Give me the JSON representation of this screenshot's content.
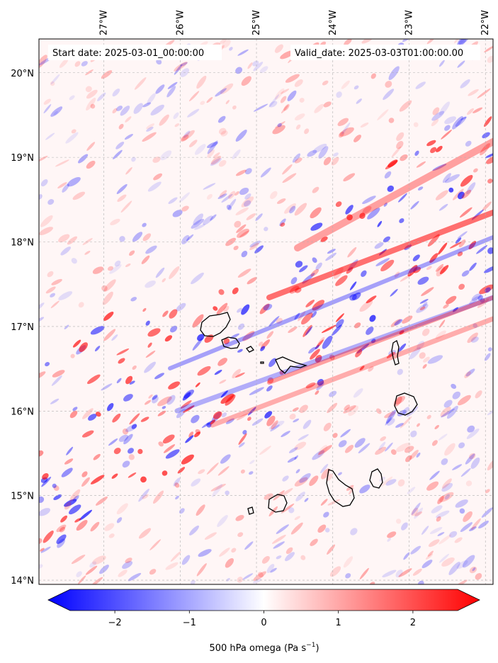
{
  "map": {
    "start_date_label": "Start date: 2025-03-01_00:00:00",
    "valid_date_label": "Valid_date: 2025-03-03T01:00:00.00",
    "lon_ticks": [
      {
        "value": -27,
        "label": "27°W"
      },
      {
        "value": -26,
        "label": "26°W"
      },
      {
        "value": -25,
        "label": "25°W"
      },
      {
        "value": -24,
        "label": "24°W"
      },
      {
        "value": -23,
        "label": "23°W"
      },
      {
        "value": -22,
        "label": "22°W"
      }
    ],
    "lat_ticks": [
      {
        "value": 20,
        "label": "20°N"
      },
      {
        "value": 19,
        "label": "19°N"
      },
      {
        "value": 18,
        "label": "18°N"
      },
      {
        "value": 17,
        "label": "17°N"
      },
      {
        "value": 16,
        "label": "16°N"
      },
      {
        "value": 15,
        "label": "15°N"
      },
      {
        "value": 14,
        "label": "14°N"
      }
    ],
    "extent": {
      "lon_min": -27.85,
      "lon_max": -21.9,
      "lat_min": 13.95,
      "lat_max": 20.4
    },
    "gridlines": true,
    "field_colors": {
      "negative": "#0000ff",
      "zero": "#ffffff",
      "positive": "#ff0000"
    }
  },
  "colorbar": {
    "label_main": "500 hPa omega (Pa s",
    "label_sup": "−1",
    "label_end": ")",
    "vmin": -2.6,
    "vmax": 2.6,
    "ticks": [
      {
        "value": -2,
        "label": "−2"
      },
      {
        "value": -1,
        "label": "−1"
      },
      {
        "value": 0,
        "label": "0"
      },
      {
        "value": 1,
        "label": "1"
      },
      {
        "value": 2,
        "label": "2"
      }
    ],
    "extend": "both"
  }
}
